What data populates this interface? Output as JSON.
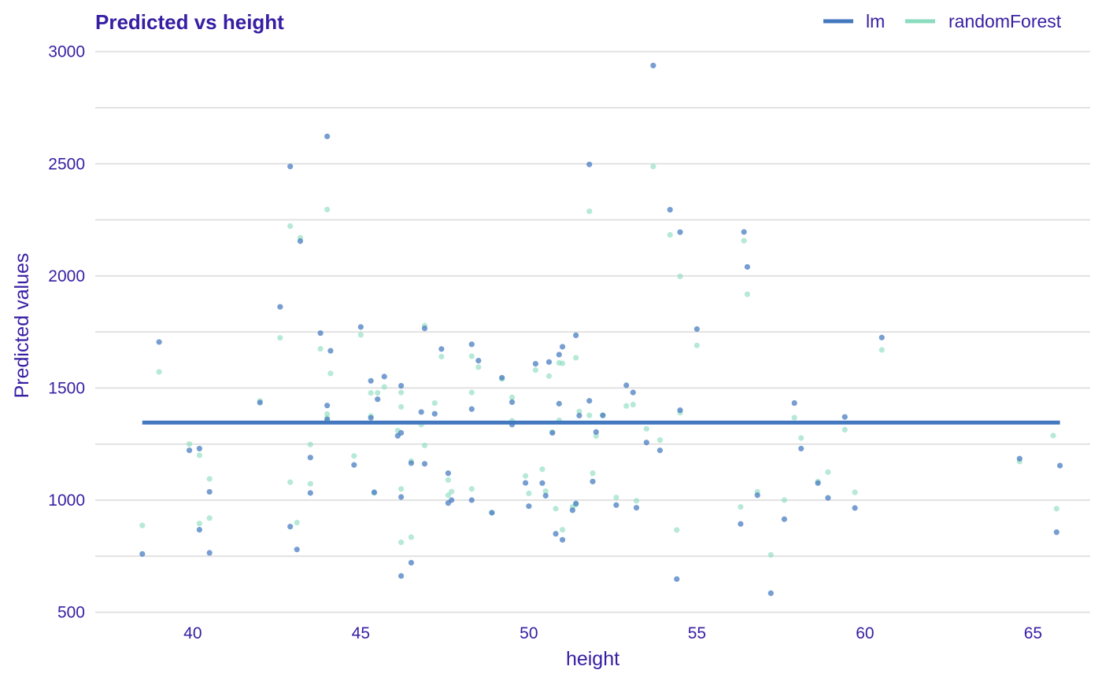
{
  "colors": {
    "text": "#371ea3",
    "grid": "#e2e2e2",
    "lm": "#4378bf",
    "randomForest": "#8bdcbe",
    "background": "#ffffff"
  },
  "chart_data": {
    "type": "scatter",
    "title": "Predicted vs height",
    "xlabel": "height",
    "ylabel": "Predicted values",
    "xlim": [
      37.1,
      66.7
    ],
    "ylim": [
      460,
      3090
    ],
    "xticks": [
      40,
      45,
      50,
      55,
      60,
      65
    ],
    "yticks": [
      500,
      1000,
      1500,
      2000,
      2500,
      3000
    ],
    "ygrid_minor": [
      750,
      1250,
      1750,
      2250,
      2750
    ],
    "grid": "horizontal",
    "legend_position": "top-right",
    "legend": [
      "lm",
      "randomForest"
    ],
    "series": [
      {
        "name": "lm",
        "color": "#4378bf",
        "fit_line": {
          "x": [
            38.5,
            65.8
          ],
          "y": [
            1346,
            1346
          ]
        },
        "points": [
          [
            38.5,
            760
          ],
          [
            39.0,
            1705
          ],
          [
            39.9,
            1222
          ],
          [
            40.2,
            1230
          ],
          [
            40.2,
            868
          ],
          [
            40.5,
            765
          ],
          [
            40.5,
            1037
          ],
          [
            42.0,
            1435
          ],
          [
            42.6,
            1862
          ],
          [
            42.9,
            2488
          ],
          [
            42.9,
            882
          ],
          [
            43.1,
            780
          ],
          [
            43.2,
            2155
          ],
          [
            43.5,
            1190
          ],
          [
            43.5,
            1032
          ],
          [
            43.8,
            1745
          ],
          [
            44.0,
            1360
          ],
          [
            44.0,
            1422
          ],
          [
            44.0,
            2622
          ],
          [
            44.1,
            1666
          ],
          [
            44.8,
            1157
          ],
          [
            45.0,
            1772
          ],
          [
            45.3,
            1532
          ],
          [
            45.3,
            1367
          ],
          [
            45.4,
            1035
          ],
          [
            45.5,
            1450
          ],
          [
            45.7,
            1551
          ],
          [
            46.1,
            1287
          ],
          [
            46.2,
            1300
          ],
          [
            46.2,
            1014
          ],
          [
            46.2,
            662
          ],
          [
            46.2,
            1510
          ],
          [
            46.5,
            721
          ],
          [
            46.5,
            1165
          ],
          [
            46.8,
            1393
          ],
          [
            46.9,
            1766
          ],
          [
            46.9,
            1162
          ],
          [
            47.2,
            1385
          ],
          [
            47.4,
            1674
          ],
          [
            47.6,
            987
          ],
          [
            47.6,
            1120
          ],
          [
            47.7,
            1000
          ],
          [
            48.3,
            1695
          ],
          [
            48.3,
            1406
          ],
          [
            48.3,
            1000
          ],
          [
            48.5,
            1622
          ],
          [
            48.9,
            944
          ],
          [
            49.2,
            1546
          ],
          [
            49.5,
            1437
          ],
          [
            49.5,
            1337
          ],
          [
            49.9,
            1077
          ],
          [
            50.0,
            973
          ],
          [
            50.2,
            1608
          ],
          [
            50.4,
            1076
          ],
          [
            50.5,
            1020
          ],
          [
            50.6,
            1616
          ],
          [
            50.7,
            1300
          ],
          [
            50.8,
            850
          ],
          [
            50.9,
            1649
          ],
          [
            50.9,
            1430
          ],
          [
            51.0,
            1684
          ],
          [
            51.0,
            823
          ],
          [
            51.3,
            955
          ],
          [
            51.4,
            1735
          ],
          [
            51.4,
            985
          ],
          [
            51.5,
            1377
          ],
          [
            51.8,
            1443
          ],
          [
            51.8,
            2497
          ],
          [
            51.9,
            1083
          ],
          [
            52.0,
            1304
          ],
          [
            52.2,
            1378
          ],
          [
            52.6,
            978
          ],
          [
            52.9,
            1512
          ],
          [
            53.1,
            1480
          ],
          [
            53.2,
            966
          ],
          [
            53.5,
            1257
          ],
          [
            53.7,
            2938
          ],
          [
            53.9,
            1222
          ],
          [
            54.2,
            2295
          ],
          [
            54.4,
            648
          ],
          [
            54.5,
            2195
          ],
          [
            54.5,
            1401
          ],
          [
            55.0,
            1763
          ],
          [
            56.3,
            894
          ],
          [
            56.4,
            2196
          ],
          [
            56.5,
            2040
          ],
          [
            56.8,
            1022
          ],
          [
            57.2,
            585
          ],
          [
            57.6,
            915
          ],
          [
            57.9,
            1433
          ],
          [
            58.1,
            1230
          ],
          [
            58.6,
            1076
          ],
          [
            58.9,
            1010
          ],
          [
            59.4,
            1371
          ],
          [
            59.7,
            965
          ],
          [
            60.5,
            1725
          ],
          [
            64.6,
            1185
          ],
          [
            65.7,
            857
          ],
          [
            65.8,
            1154
          ]
        ]
      },
      {
        "name": "randomForest",
        "color": "#8bdcbe",
        "points": [
          [
            38.5,
            887
          ],
          [
            39.0,
            1572
          ],
          [
            39.9,
            1250
          ],
          [
            40.2,
            1200
          ],
          [
            40.2,
            896
          ],
          [
            40.5,
            920
          ],
          [
            40.5,
            1095
          ],
          [
            42.0,
            1442
          ],
          [
            42.6,
            1724
          ],
          [
            42.9,
            2222
          ],
          [
            42.9,
            1080
          ],
          [
            43.1,
            900
          ],
          [
            43.2,
            2170
          ],
          [
            43.5,
            1248
          ],
          [
            43.5,
            1073
          ],
          [
            43.8,
            1675
          ],
          [
            44.0,
            1384
          ],
          [
            44.0,
            1366
          ],
          [
            44.0,
            2296
          ],
          [
            44.1,
            1565
          ],
          [
            44.8,
            1197
          ],
          [
            45.0,
            1737
          ],
          [
            45.3,
            1478
          ],
          [
            45.3,
            1375
          ],
          [
            45.4,
            1032
          ],
          [
            45.5,
            1478
          ],
          [
            45.7,
            1505
          ],
          [
            46.1,
            1310
          ],
          [
            46.2,
            1480
          ],
          [
            46.2,
            1050
          ],
          [
            46.2,
            812
          ],
          [
            46.2,
            1416
          ],
          [
            46.5,
            835
          ],
          [
            46.5,
            1174
          ],
          [
            46.8,
            1337
          ],
          [
            46.9,
            1778
          ],
          [
            46.9,
            1244
          ],
          [
            47.2,
            1433
          ],
          [
            47.4,
            1640
          ],
          [
            47.6,
            1022
          ],
          [
            47.6,
            1090
          ],
          [
            47.7,
            1038
          ],
          [
            48.3,
            1642
          ],
          [
            48.3,
            1480
          ],
          [
            48.3,
            1050
          ],
          [
            48.5,
            1593
          ],
          [
            48.9,
            944
          ],
          [
            49.2,
            1540
          ],
          [
            49.5,
            1458
          ],
          [
            49.5,
            1354
          ],
          [
            49.9,
            1108
          ],
          [
            50.0,
            1030
          ],
          [
            50.2,
            1580
          ],
          [
            50.4,
            1138
          ],
          [
            50.5,
            1040
          ],
          [
            50.6,
            1553
          ],
          [
            50.7,
            1304
          ],
          [
            50.8,
            962
          ],
          [
            50.9,
            1612
          ],
          [
            50.9,
            1356
          ],
          [
            51.0,
            1610
          ],
          [
            51.0,
            868
          ],
          [
            51.3,
            970
          ],
          [
            51.4,
            1635
          ],
          [
            51.4,
            980
          ],
          [
            51.5,
            1395
          ],
          [
            51.8,
            1378
          ],
          [
            51.8,
            2288
          ],
          [
            51.9,
            1120
          ],
          [
            52.0,
            1286
          ],
          [
            52.2,
            1378
          ],
          [
            52.6,
            1012
          ],
          [
            52.9,
            1420
          ],
          [
            53.1,
            1426
          ],
          [
            53.2,
            997
          ],
          [
            53.5,
            1318
          ],
          [
            53.7,
            2488
          ],
          [
            53.9,
            1268
          ],
          [
            54.2,
            2183
          ],
          [
            54.4,
            867
          ],
          [
            54.5,
            1998
          ],
          [
            54.5,
            1390
          ],
          [
            55.0,
            1690
          ],
          [
            56.3,
            970
          ],
          [
            56.4,
            2157
          ],
          [
            56.5,
            1918
          ],
          [
            56.8,
            1037
          ],
          [
            57.2,
            756
          ],
          [
            57.6,
            1000
          ],
          [
            57.9,
            1368
          ],
          [
            58.1,
            1277
          ],
          [
            58.6,
            1083
          ],
          [
            58.9,
            1125
          ],
          [
            59.4,
            1314
          ],
          [
            59.7,
            1035
          ],
          [
            60.5,
            1670
          ],
          [
            64.6,
            1172
          ],
          [
            65.7,
            962
          ],
          [
            65.6,
            1288
          ]
        ]
      }
    ]
  }
}
